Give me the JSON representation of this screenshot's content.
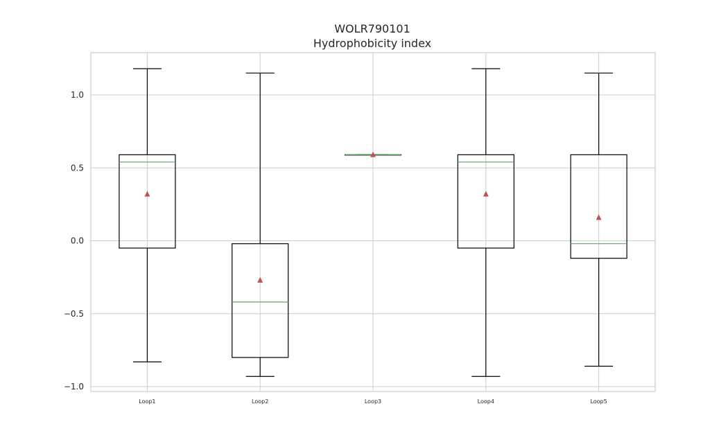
{
  "chart_data": {
    "type": "box",
    "title": "WOLR790101",
    "subtitle": "Hydrophobicity index",
    "xlabel": "",
    "ylabel": "",
    "ylim": [
      -1.05,
      1.28
    ],
    "yticks": [
      -1.0,
      -0.5,
      0.0,
      0.5,
      1.0
    ],
    "ytick_labels": [
      "−1.0",
      "−0.5",
      "0.0",
      "0.5",
      "1.0"
    ],
    "grid": true,
    "categories": [
      "Loop1",
      "Loop2",
      "Loop3",
      "Loop4",
      "Loop5"
    ],
    "boxes": [
      {
        "whislo": -0.83,
        "q1": -0.05,
        "med": 0.54,
        "q3": 0.59,
        "whishi": 1.18,
        "mean": 0.32
      },
      {
        "whislo": -0.93,
        "q1": -0.8,
        "med": -0.42,
        "q3": -0.02,
        "whishi": 1.15,
        "mean": -0.27
      },
      {
        "whislo": 0.59,
        "q1": 0.59,
        "med": 0.59,
        "q3": 0.59,
        "whishi": 0.59,
        "mean": 0.59
      },
      {
        "whislo": -0.93,
        "q1": -0.05,
        "med": 0.54,
        "q3": 0.59,
        "whishi": 1.18,
        "mean": 0.32
      },
      {
        "whislo": -0.86,
        "q1": -0.12,
        "med": -0.02,
        "q3": 0.59,
        "whishi": 1.15,
        "mean": 0.16
      }
    ],
    "colors": {
      "box": "#000000",
      "median": "#55a868",
      "mean": "#c44e52",
      "grid": "#cccccc",
      "frame": "#cccccc"
    }
  }
}
